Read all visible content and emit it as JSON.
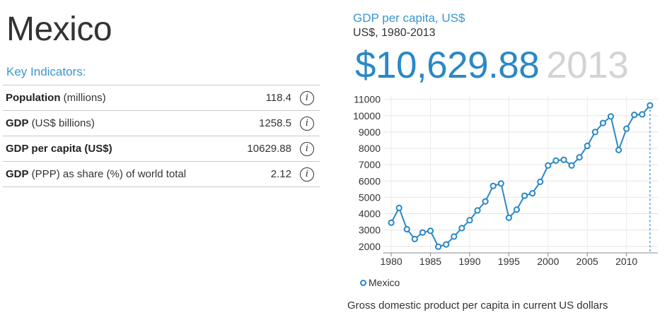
{
  "country": "Mexico",
  "key_indicators": {
    "title": "Key Indicators:",
    "rows": [
      {
        "label_bold": "Population",
        "label_rest": " (millions)",
        "value": "118.4"
      },
      {
        "label_bold": "GDP",
        "label_rest": " (US$ billions)",
        "value": "1258.5"
      },
      {
        "label_bold": "GDP per capita (US$)",
        "label_rest": "",
        "value": "10629.88"
      },
      {
        "label_bold": "GDP",
        "label_rest": " (PPP) as share (%) of world total",
        "value": "2.12"
      }
    ]
  },
  "indicator": {
    "name": "GDP per capita, US$",
    "subtitle": "US$, 1980-2013",
    "value": "$10,629.88",
    "year": "2013",
    "caption": "Gross domestic product per capita in current US dollars"
  },
  "colors": {
    "series": "#2b88c6",
    "accent": "#3a96cf",
    "year": "#d3d3d3"
  },
  "icons": {
    "info": "info-icon"
  },
  "chart_data": {
    "type": "line",
    "title": "GDP per capita, US$",
    "xlabel": "",
    "ylabel": "",
    "xlim": [
      1979,
      2014
    ],
    "ylim": [
      1600,
      11200
    ],
    "x_ticks": [
      1980,
      1985,
      1990,
      1995,
      2000,
      2005,
      2010
    ],
    "y_ticks": [
      2000,
      3000,
      4000,
      5000,
      6000,
      7000,
      8000,
      9000,
      10000,
      11000
    ],
    "grid": true,
    "legend_position": "bottom-left",
    "highlight_year": 2013,
    "series": [
      {
        "name": "Mexico",
        "x": [
          1980,
          1981,
          1982,
          1983,
          1984,
          1985,
          1986,
          1987,
          1988,
          1989,
          1990,
          1991,
          1992,
          1993,
          1994,
          1995,
          1996,
          1997,
          1998,
          1999,
          2000,
          2001,
          2002,
          2003,
          2004,
          2005,
          2006,
          2007,
          2008,
          2009,
          2010,
          2011,
          2012,
          2013
        ],
        "values": [
          3450,
          4350,
          3050,
          2450,
          2850,
          2950,
          1980,
          2120,
          2600,
          3120,
          3600,
          4200,
          4750,
          5700,
          5850,
          3750,
          4250,
          5100,
          5250,
          5950,
          6950,
          7250,
          7300,
          6950,
          7450,
          8150,
          9000,
          9550,
          9950,
          7900,
          9200,
          10050,
          10080,
          10629.88
        ]
      }
    ]
  }
}
